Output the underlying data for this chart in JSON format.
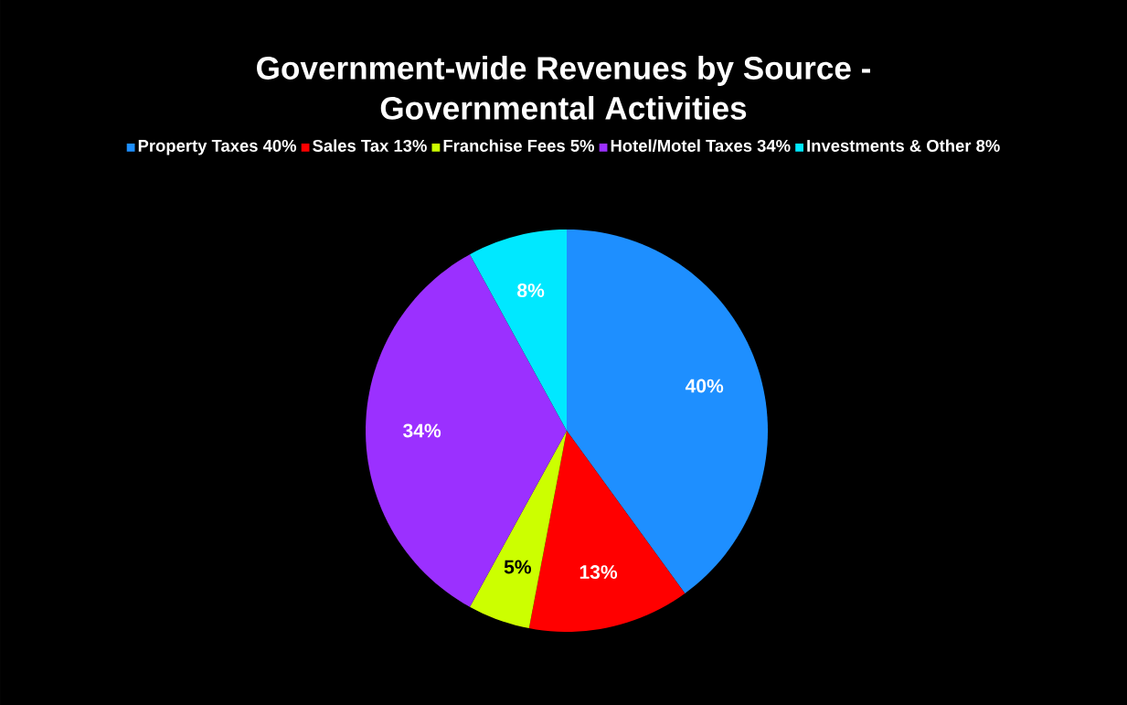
{
  "chart_data": {
    "type": "pie",
    "title": "Government-wide Revenues by Source -\nGovernmental Activities",
    "categories": [
      "Property Taxes 40%",
      "Sales Tax 13%",
      "Franchise Fees 5%",
      "Hotel/Motel Taxes 34%",
      "Investments & Other 8%"
    ],
    "values": [
      40,
      13,
      5,
      34,
      8
    ],
    "colors": [
      "#1e8fff",
      "#ff0000",
      "#ccff00",
      "#9b30ff",
      "#00e8ff"
    ],
    "value_labels": [
      "40%",
      "13%",
      "5%",
      "34%",
      "8%"
    ],
    "legend": "top"
  }
}
